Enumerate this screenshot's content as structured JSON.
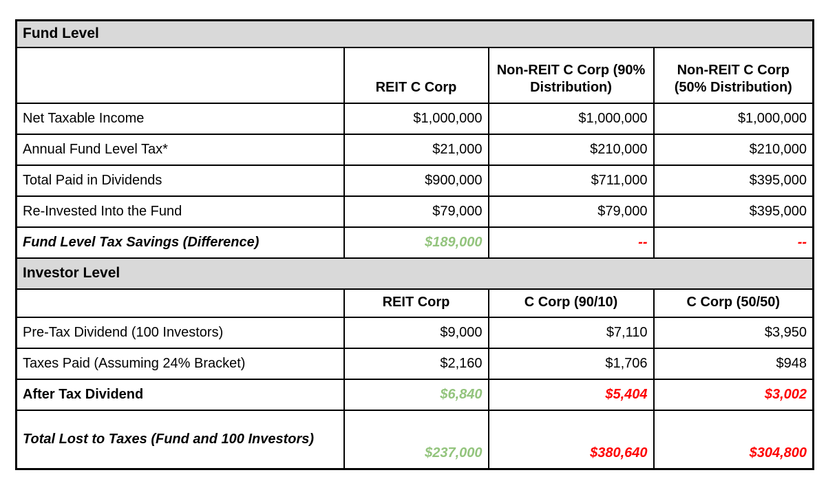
{
  "colors": {
    "section-bg": "#d9d9d9",
    "positive": "#93c47d",
    "negative": "#fe0000",
    "border": "#000000",
    "page-bg": "#ffffff"
  },
  "fund_section": {
    "title": "Fund Level",
    "columns": [
      "REIT C Corp",
      "Non-REIT C Corp (90% Distribution)",
      "Non-REIT C Corp (50% Distribution)"
    ],
    "rows": [
      {
        "label": "Net Taxable Income",
        "values": [
          "$1,000,000",
          "$1,000,000",
          "$1,000,000"
        ]
      },
      {
        "label": "Annual Fund Level Tax*",
        "values": [
          "$21,000",
          "$210,000",
          "$210,000"
        ]
      },
      {
        "label": "Total Paid in Dividends",
        "values": [
          "$900,000",
          "$711,000",
          "$395,000"
        ]
      },
      {
        "label": "Re-Invested Into the Fund",
        "values": [
          "$79,000",
          "$79,000",
          "$395,000"
        ]
      },
      {
        "label": "Fund Level Tax Savings (Difference)",
        "values": [
          "$189,000",
          "--",
          "--"
        ]
      }
    ]
  },
  "investor_section": {
    "title": "Investor Level",
    "columns": [
      "REIT Corp",
      "C Corp (90/10)",
      "C Corp (50/50)"
    ],
    "rows": [
      {
        "label": "Pre-Tax Dividend (100 Investors)",
        "values": [
          "$9,000",
          "$7,110",
          "$3,950"
        ]
      },
      {
        "label": "Taxes Paid (Assuming 24% Bracket)",
        "values": [
          "$2,160",
          "$1,706",
          "$948"
        ]
      },
      {
        "label": "After Tax Dividend",
        "values": [
          "$6,840",
          "$5,404",
          "$3,002"
        ]
      },
      {
        "label": "Total Lost to Taxes (Fund and 100 Investors)",
        "values": [
          "$237,000",
          "$380,640",
          "$304,800"
        ]
      }
    ]
  }
}
